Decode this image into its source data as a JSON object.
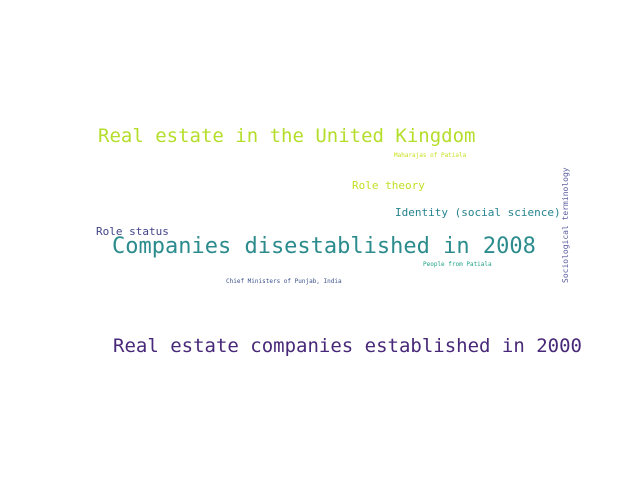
{
  "words": [
    {
      "text": "Real estate in the United Kingdom",
      "color": "#b5de2b"
    },
    {
      "text": "Maharajas of Patiala",
      "color": "#c8e020"
    },
    {
      "text": "Role theory",
      "color": "#c2df23"
    },
    {
      "text": "Identity (social science)",
      "color": "#25848e"
    },
    {
      "text": "Role status",
      "color": "#414487"
    },
    {
      "text": "Companies disestablished in 2008",
      "color": "#2c8c8d"
    },
    {
      "text": "People from Patiala",
      "color": "#1fa187"
    },
    {
      "text": "Chief Ministers of Punjab, India",
      "color": "#3b528b"
    },
    {
      "text": "Sociological terminology",
      "color": "#5b5fa0"
    },
    {
      "text": "Real estate companies established in 2000",
      "color": "#482878"
    }
  ]
}
